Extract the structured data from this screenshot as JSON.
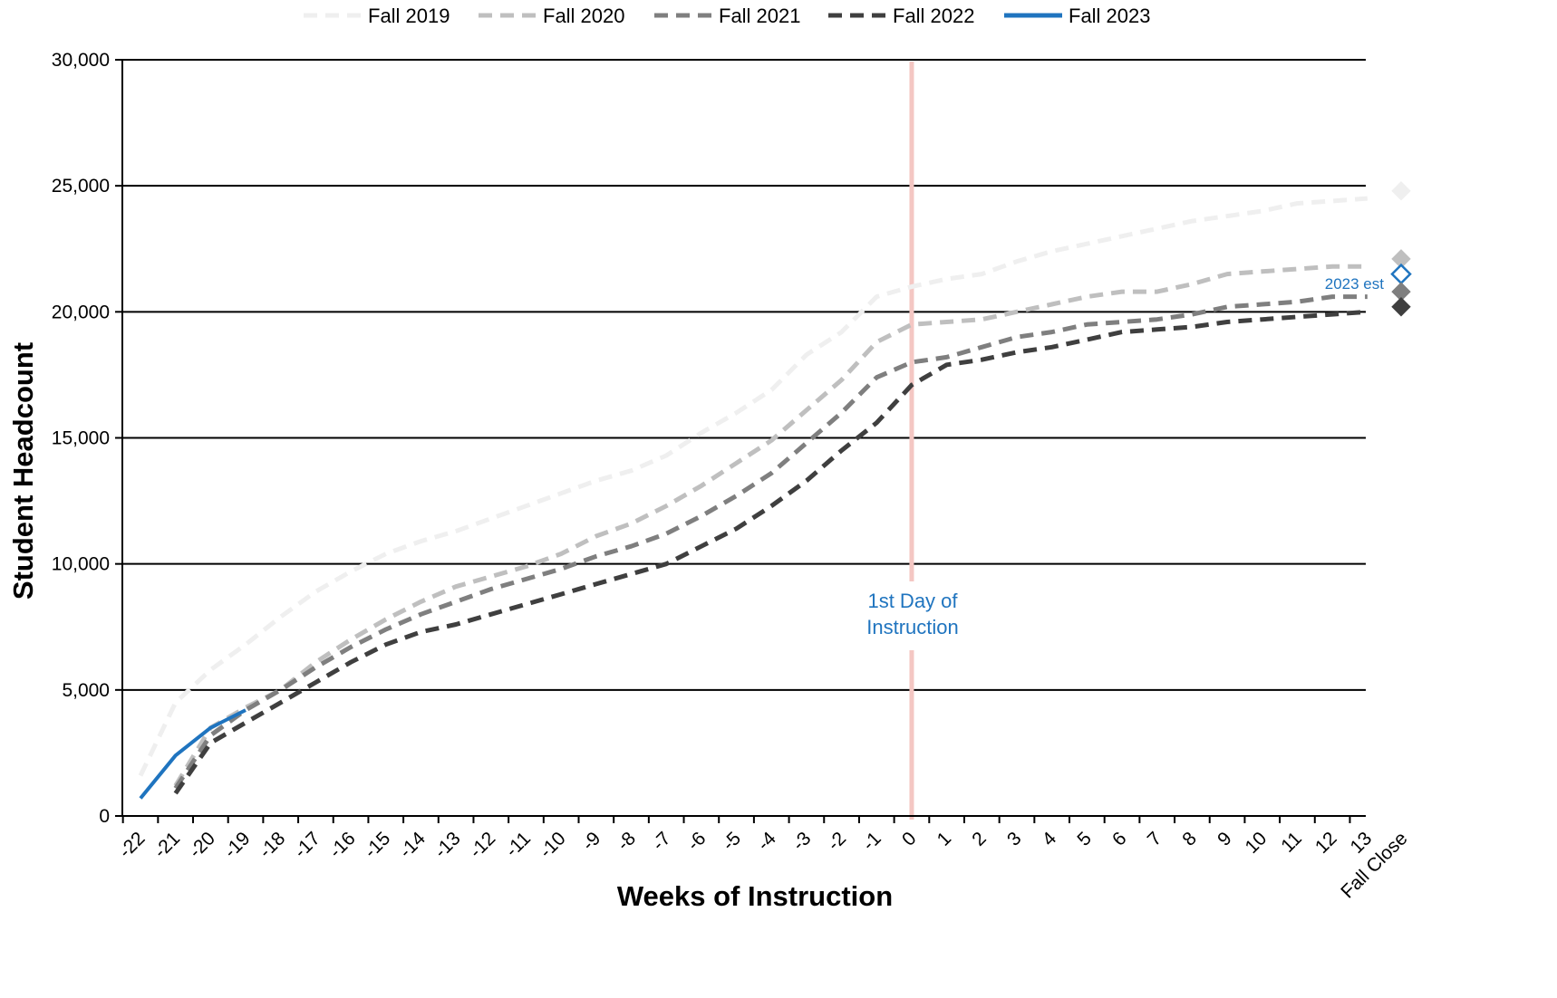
{
  "chart_data": {
    "type": "line",
    "xlabel": "Weeks of Instruction",
    "ylabel": "Student Headcount",
    "ylim": [
      0,
      30000
    ],
    "y_ticks": [
      0,
      5000,
      10000,
      15000,
      20000,
      25000,
      30000
    ],
    "y_tick_labels": [
      "0",
      "5,000",
      "10,000",
      "15,000",
      "20,000",
      "25,000",
      "30,000"
    ],
    "categories": [
      "-22",
      "-21",
      "-20",
      "-19",
      "-18",
      "-17",
      "-16",
      "-15",
      "-14",
      "-13",
      "-12",
      "-11",
      "-10",
      "-9",
      "-8",
      "-7",
      "-6",
      "-5",
      "-4",
      "-3",
      "-2",
      "-1",
      "0",
      "1",
      "2",
      "3",
      "4",
      "5",
      "6",
      "7",
      "8",
      "9",
      "10",
      "11",
      "12",
      "13",
      "Fall Close"
    ],
    "grid": "horizontal",
    "legend_position": "top",
    "series": [
      {
        "name": "Fall 2019",
        "color": "#efefef",
        "style": "dashed",
        "x": [
          "-22",
          "-21",
          "-20",
          "-19",
          "-18",
          "-17",
          "-16",
          "-15",
          "-14",
          "-13",
          "-12",
          "-11",
          "-10",
          "-9",
          "-8",
          "-7",
          "-6",
          "-5",
          "-4",
          "-3",
          "-2",
          "-1",
          "0",
          "1",
          "2",
          "3",
          "4",
          "5",
          "6",
          "7",
          "8",
          "9",
          "10",
          "11",
          "12",
          "13"
        ],
        "values": [
          1600,
          4500,
          5800,
          6800,
          7900,
          8900,
          9700,
          10400,
          10900,
          11300,
          11800,
          12300,
          12800,
          13300,
          13700,
          14300,
          15200,
          16000,
          16900,
          18300,
          19200,
          20600,
          21000,
          21300,
          21500,
          22000,
          22400,
          22700,
          23000,
          23300,
          23600,
          23800,
          24000,
          24300,
          24400,
          24500
        ]
      },
      {
        "name": "Fall 2020",
        "color": "#bfbfbf",
        "style": "dashed",
        "x": [
          "-21",
          "-20",
          "-19",
          "-18",
          "-17",
          "-16",
          "-15",
          "-14",
          "-13",
          "-12",
          "-11",
          "-10",
          "-9",
          "-8",
          "-7",
          "-6",
          "-5",
          "-4",
          "-3",
          "-2",
          "-1",
          "0",
          "1",
          "2",
          "3",
          "4",
          "5",
          "6",
          "7",
          "8",
          "9",
          "10",
          "11",
          "12",
          "13"
        ],
        "values": [
          1200,
          3500,
          4300,
          5000,
          6100,
          7000,
          7800,
          8500,
          9100,
          9500,
          9900,
          10400,
          11100,
          11600,
          12300,
          13100,
          14000,
          14900,
          16100,
          17300,
          18800,
          19500,
          19600,
          19700,
          20000,
          20300,
          20600,
          20800,
          20800,
          21100,
          21500,
          21600,
          21700,
          21800,
          21800
        ]
      },
      {
        "name": "Fall 2021",
        "color": "#7f7f7f",
        "style": "dashed",
        "x": [
          "-21",
          "-20",
          "-19",
          "-18",
          "-17",
          "-16",
          "-15",
          "-14",
          "-13",
          "-12",
          "-11",
          "-10",
          "-9",
          "-8",
          "-7",
          "-6",
          "-5",
          "-4",
          "-3",
          "-2",
          "-1",
          "0",
          "1",
          "2",
          "3",
          "4",
          "5",
          "6",
          "7",
          "8",
          "9",
          "10",
          "11",
          "12",
          "13"
        ],
        "values": [
          1100,
          3200,
          4200,
          5000,
          5900,
          6700,
          7400,
          8000,
          8500,
          9000,
          9400,
          9800,
          10300,
          10700,
          11200,
          11900,
          12700,
          13600,
          14800,
          16000,
          17400,
          18000,
          18200,
          18600,
          19000,
          19200,
          19500,
          19600,
          19700,
          19900,
          20200,
          20300,
          20400,
          20600,
          20600
        ]
      },
      {
        "name": "Fall 2022",
        "color": "#3f3f3f",
        "style": "dashed",
        "x": [
          "-21",
          "-20",
          "-19",
          "-18",
          "-17",
          "-16",
          "-15",
          "-14",
          "-13",
          "-12",
          "-11",
          "-10",
          "-9",
          "-8",
          "-7",
          "-6",
          "-5",
          "-4",
          "-3",
          "-2",
          "-1",
          "0",
          "1",
          "2",
          "3",
          "4",
          "5",
          "6",
          "7",
          "8",
          "9",
          "10",
          "11",
          "12",
          "13"
        ],
        "values": [
          900,
          2900,
          3700,
          4500,
          5300,
          6100,
          6800,
          7300,
          7600,
          8000,
          8400,
          8800,
          9200,
          9600,
          10000,
          10700,
          11400,
          12300,
          13300,
          14500,
          15600,
          17100,
          17900,
          18100,
          18400,
          18600,
          18900,
          19200,
          19300,
          19400,
          19600,
          19700,
          19800,
          19900,
          20000
        ]
      },
      {
        "name": "Fall 2023",
        "color": "#1f74bf",
        "style": "solid",
        "x": [
          "-22",
          "-21",
          "-20",
          "-19"
        ],
        "values": [
          700,
          2400,
          3500,
          4200
        ]
      }
    ],
    "fall_close_markers": [
      {
        "series": "Fall 2019",
        "value": 24800,
        "color": "#efefef",
        "filled": true
      },
      {
        "series": "Fall 2020",
        "value": 22100,
        "color": "#bfbfbf",
        "filled": true
      },
      {
        "series": "Fall 2023",
        "value": 21500,
        "color": "#1f74bf",
        "filled": false
      },
      {
        "series": "Fall 2021",
        "value": 20800,
        "color": "#7f7f7f",
        "filled": true
      },
      {
        "series": "Fall 2022",
        "value": 20200,
        "color": "#3f3f3f",
        "filled": true
      }
    ],
    "annotations": {
      "first_day_line": {
        "x": "0",
        "color": "#f4c7c3",
        "label_line1": "1st Day of",
        "label_line2": "Instruction"
      },
      "estimate_label": "2023 est"
    }
  }
}
